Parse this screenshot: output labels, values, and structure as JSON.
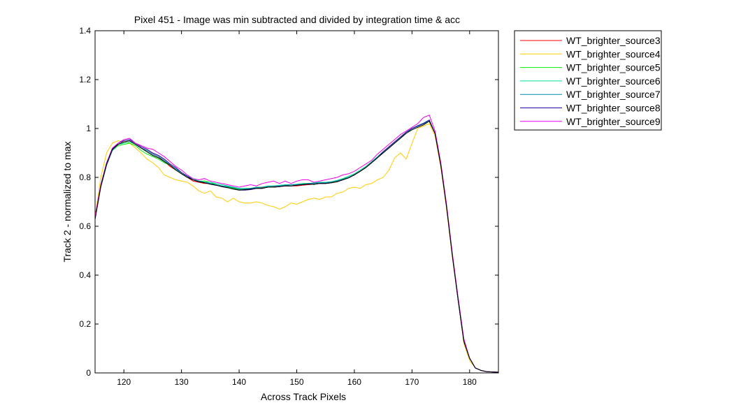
{
  "chart_data": {
    "type": "line",
    "title": "Pixel 451 - Image was min subtracted and divided by integration time & acc",
    "xlabel": "Across Track Pixels",
    "ylabel": "Track 2 - normalized to max",
    "xlim": [
      115,
      185
    ],
    "ylim": [
      0,
      1.4
    ],
    "xticks": [
      120,
      130,
      140,
      150,
      160,
      170,
      180
    ],
    "yticks": [
      0,
      0.2,
      0.4,
      0.6,
      0.8,
      1,
      1.2,
      1.4
    ],
    "ytick_labels": [
      "0",
      "0.2",
      "0.4",
      "0.6",
      "0.8",
      "1",
      "1.2",
      "1.4"
    ],
    "grid": false,
    "legend_position": "outside-top-right",
    "x": [
      115,
      116,
      117,
      118,
      119,
      120,
      121,
      122,
      123,
      124,
      125,
      126,
      127,
      128,
      129,
      130,
      131,
      132,
      133,
      134,
      135,
      136,
      137,
      138,
      139,
      140,
      141,
      142,
      143,
      144,
      145,
      146,
      147,
      148,
      149,
      150,
      151,
      152,
      153,
      154,
      155,
      156,
      157,
      158,
      159,
      160,
      161,
      162,
      163,
      164,
      165,
      166,
      167,
      168,
      169,
      170,
      171,
      172,
      173,
      174,
      175,
      176,
      177,
      178,
      179,
      180,
      181,
      182,
      183,
      184,
      185
    ],
    "series": [
      {
        "name": "WT_brighter_source3",
        "color": "#ff0000",
        "values": [
          0.63,
          0.76,
          0.85,
          0.91,
          0.935,
          0.945,
          0.95,
          0.935,
          0.92,
          0.91,
          0.895,
          0.885,
          0.865,
          0.845,
          0.83,
          0.815,
          0.8,
          0.785,
          0.78,
          0.775,
          0.775,
          0.77,
          0.765,
          0.76,
          0.755,
          0.75,
          0.75,
          0.752,
          0.755,
          0.758,
          0.76,
          0.762,
          0.762,
          0.765,
          0.765,
          0.765,
          0.768,
          0.77,
          0.772,
          0.775,
          0.775,
          0.778,
          0.782,
          0.79,
          0.8,
          0.81,
          0.825,
          0.84,
          0.86,
          0.88,
          0.905,
          0.925,
          0.945,
          0.965,
          0.985,
          1.0,
          1.01,
          1.02,
          1.03,
          0.98,
          0.85,
          0.68,
          0.48,
          0.3,
          0.13,
          0.06,
          0.02,
          0.01,
          0.005,
          0.004,
          0.003
        ]
      },
      {
        "name": "WT_brighter_source4",
        "color": "#ffcc00",
        "values": [
          0.64,
          0.8,
          0.9,
          0.94,
          0.95,
          0.945,
          0.94,
          0.92,
          0.9,
          0.875,
          0.86,
          0.84,
          0.81,
          0.8,
          0.79,
          0.785,
          0.78,
          0.765,
          0.745,
          0.735,
          0.745,
          0.72,
          0.715,
          0.7,
          0.715,
          0.7,
          0.695,
          0.695,
          0.7,
          0.695,
          0.685,
          0.68,
          0.67,
          0.68,
          0.695,
          0.69,
          0.7,
          0.71,
          0.715,
          0.71,
          0.72,
          0.72,
          0.735,
          0.74,
          0.755,
          0.76,
          0.755,
          0.77,
          0.775,
          0.79,
          0.8,
          0.83,
          0.88,
          0.9,
          0.875,
          0.94,
          1.0,
          1.01,
          1.02,
          0.97,
          0.84,
          0.67,
          0.47,
          0.3,
          0.12,
          0.05,
          0.02,
          0.01,
          0.005,
          0.004,
          0.003
        ]
      },
      {
        "name": "WT_brighter_source5",
        "color": "#00ee00",
        "values": [
          0.63,
          0.77,
          0.86,
          0.91,
          0.93,
          0.935,
          0.94,
          0.93,
          0.91,
          0.895,
          0.885,
          0.875,
          0.86,
          0.85,
          0.83,
          0.815,
          0.8,
          0.79,
          0.785,
          0.785,
          0.78,
          0.77,
          0.765,
          0.76,
          0.755,
          0.75,
          0.75,
          0.755,
          0.76,
          0.755,
          0.765,
          0.76,
          0.762,
          0.77,
          0.765,
          0.77,
          0.775,
          0.775,
          0.77,
          0.78,
          0.775,
          0.78,
          0.785,
          0.795,
          0.8,
          0.81,
          0.825,
          0.84,
          0.86,
          0.88,
          0.9,
          0.92,
          0.94,
          0.96,
          0.985,
          0.995,
          1.005,
          1.015,
          1.03,
          0.98,
          0.85,
          0.68,
          0.48,
          0.3,
          0.13,
          0.06,
          0.02,
          0.01,
          0.005,
          0.004,
          0.003
        ]
      },
      {
        "name": "WT_brighter_source6",
        "color": "#00dd99",
        "values": [
          0.635,
          0.765,
          0.855,
          0.915,
          0.935,
          0.94,
          0.945,
          0.935,
          0.92,
          0.905,
          0.89,
          0.88,
          0.865,
          0.85,
          0.835,
          0.815,
          0.805,
          0.795,
          0.785,
          0.78,
          0.78,
          0.775,
          0.77,
          0.765,
          0.76,
          0.755,
          0.755,
          0.755,
          0.76,
          0.76,
          0.765,
          0.765,
          0.768,
          0.77,
          0.77,
          0.772,
          0.775,
          0.775,
          0.778,
          0.78,
          0.78,
          0.782,
          0.788,
          0.795,
          0.805,
          0.815,
          0.83,
          0.845,
          0.865,
          0.885,
          0.905,
          0.925,
          0.945,
          0.965,
          0.985,
          1.0,
          1.01,
          1.02,
          1.03,
          0.98,
          0.85,
          0.68,
          0.48,
          0.3,
          0.13,
          0.06,
          0.02,
          0.01,
          0.005,
          0.004,
          0.003
        ]
      },
      {
        "name": "WT_brighter_source7",
        "color": "#0088aa",
        "values": [
          0.63,
          0.76,
          0.85,
          0.91,
          0.935,
          0.945,
          0.95,
          0.935,
          0.92,
          0.91,
          0.895,
          0.885,
          0.87,
          0.85,
          0.835,
          0.82,
          0.805,
          0.79,
          0.785,
          0.78,
          0.775,
          0.77,
          0.765,
          0.762,
          0.758,
          0.752,
          0.752,
          0.755,
          0.758,
          0.76,
          0.762,
          0.765,
          0.765,
          0.768,
          0.77,
          0.77,
          0.772,
          0.775,
          0.776,
          0.778,
          0.778,
          0.782,
          0.786,
          0.792,
          0.8,
          0.812,
          0.826,
          0.842,
          0.862,
          0.882,
          0.905,
          0.925,
          0.945,
          0.965,
          0.985,
          1.0,
          1.012,
          1.022,
          1.035,
          0.98,
          0.85,
          0.68,
          0.48,
          0.3,
          0.13,
          0.06,
          0.02,
          0.01,
          0.005,
          0.004,
          0.003
        ]
      },
      {
        "name": "WT_brighter_source8",
        "color": "#2200aa",
        "values": [
          0.63,
          0.765,
          0.855,
          0.915,
          0.94,
          0.95,
          0.955,
          0.94,
          0.925,
          0.915,
          0.9,
          0.89,
          0.875,
          0.855,
          0.84,
          0.82,
          0.805,
          0.79,
          0.782,
          0.778,
          0.772,
          0.768,
          0.762,
          0.758,
          0.752,
          0.748,
          0.748,
          0.75,
          0.755,
          0.755,
          0.76,
          0.76,
          0.762,
          0.765,
          0.765,
          0.768,
          0.77,
          0.772,
          0.772,
          0.775,
          0.775,
          0.778,
          0.782,
          0.79,
          0.798,
          0.81,
          0.825,
          0.84,
          0.86,
          0.88,
          0.905,
          0.925,
          0.945,
          0.965,
          0.985,
          1.0,
          1.01,
          1.02,
          1.035,
          0.98,
          0.85,
          0.68,
          0.48,
          0.3,
          0.13,
          0.06,
          0.02,
          0.01,
          0.005,
          0.004,
          0.003
        ]
      },
      {
        "name": "WT_brighter_source9",
        "color": "#ee00ee",
        "values": [
          0.64,
          0.77,
          0.86,
          0.92,
          0.94,
          0.955,
          0.96,
          0.94,
          0.93,
          0.92,
          0.915,
          0.9,
          0.885,
          0.865,
          0.845,
          0.83,
          0.81,
          0.795,
          0.79,
          0.795,
          0.785,
          0.78,
          0.775,
          0.77,
          0.765,
          0.76,
          0.765,
          0.77,
          0.765,
          0.775,
          0.78,
          0.785,
          0.775,
          0.785,
          0.775,
          0.785,
          0.79,
          0.79,
          0.78,
          0.785,
          0.79,
          0.795,
          0.8,
          0.81,
          0.815,
          0.825,
          0.84,
          0.855,
          0.87,
          0.895,
          0.915,
          0.935,
          0.955,
          0.975,
          0.99,
          1.005,
          1.02,
          1.045,
          1.055,
          0.99,
          0.86,
          0.69,
          0.49,
          0.31,
          0.14,
          0.06,
          0.02,
          0.01,
          0.005,
          0.004,
          0.003
        ]
      },
      {
        "color": "#000000",
        "values": [
          0.63,
          0.765,
          0.855,
          0.915,
          0.935,
          0.945,
          0.95,
          0.935,
          0.92,
          0.905,
          0.89,
          0.88,
          0.865,
          0.85,
          0.83,
          0.815,
          0.8,
          0.79,
          0.782,
          0.778,
          0.772,
          0.768,
          0.762,
          0.758,
          0.752,
          0.748,
          0.75,
          0.752,
          0.755,
          0.755,
          0.76,
          0.76,
          0.762,
          0.765,
          0.765,
          0.768,
          0.77,
          0.772,
          0.772,
          0.775,
          0.775,
          0.778,
          0.782,
          0.79,
          0.798,
          0.81,
          0.825,
          0.84,
          0.86,
          0.88,
          0.9,
          0.92,
          0.94,
          0.96,
          0.98,
          0.995,
          1.005,
          1.015,
          1.03,
          0.98,
          0.85,
          0.68,
          0.48,
          0.3,
          0.13,
          0.06,
          0.02,
          0.01,
          0.005,
          0.004,
          0.003
        ]
      }
    ]
  }
}
